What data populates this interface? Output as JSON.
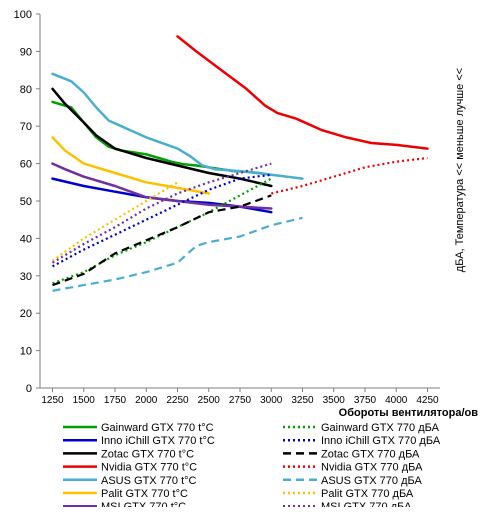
{
  "chart_data": {
    "type": "line",
    "xlabel": "Обороты вентилятора/ов",
    "ylabel_right": "дБА, Температура << меньше лучше <<",
    "xlim": [
      1150,
      4350
    ],
    "ylim": [
      0,
      100
    ],
    "x_ticks": [
      1250,
      1500,
      1750,
      2000,
      2250,
      2500,
      2750,
      3000,
      3250,
      3500,
      3750,
      4000,
      4250
    ],
    "y_ticks": [
      0,
      10,
      20,
      30,
      40,
      50,
      60,
      70,
      80,
      90,
      100
    ],
    "grid": false,
    "legend_position": "bottom",
    "series": [
      {
        "name": "Gainward GTX  770 t°C",
        "color": "#00a000",
        "style": "solid",
        "points": [
          [
            1250,
            76.5
          ],
          [
            1400,
            75
          ],
          [
            1500,
            71
          ],
          [
            1600,
            67
          ],
          [
            1700,
            64.5
          ],
          [
            1800,
            63.5
          ],
          [
            1900,
            63
          ],
          [
            2000,
            62.5
          ],
          [
            2100,
            61.5
          ],
          [
            2200,
            60.5
          ],
          [
            2300,
            59.8
          ],
          [
            2400,
            59.5
          ],
          [
            2500,
            59
          ],
          [
            2600,
            58.5
          ],
          [
            2700,
            58
          ],
          [
            2800,
            57.8
          ],
          [
            2900,
            57.5
          ],
          [
            3000,
            57
          ]
        ]
      },
      {
        "name": "Inno iChill GTX  770 t°C",
        "color": "#0000cc",
        "style": "solid",
        "points": [
          [
            1250,
            56
          ],
          [
            1500,
            54
          ],
          [
            1750,
            52.5
          ],
          [
            2000,
            51
          ],
          [
            2250,
            50
          ],
          [
            2500,
            49.5
          ],
          [
            2750,
            48.5
          ],
          [
            3000,
            47
          ]
        ]
      },
      {
        "name": "Zotac GTX  770 t°C",
        "color": "#000000",
        "style": "solid",
        "points": [
          [
            1250,
            80
          ],
          [
            1350,
            76
          ],
          [
            1500,
            71
          ],
          [
            1600,
            67.5
          ],
          [
            1750,
            64
          ],
          [
            2000,
            61.5
          ],
          [
            2250,
            59.5
          ],
          [
            2500,
            57.5
          ],
          [
            2750,
            56
          ],
          [
            3000,
            54
          ]
        ]
      },
      {
        "name": "Nvidia GTX  770 t°C",
        "color": "#ee0000",
        "style": "solid",
        "points": [
          [
            2250,
            94
          ],
          [
            2400,
            90
          ],
          [
            2600,
            85
          ],
          [
            2800,
            80
          ],
          [
            2950,
            75.5
          ],
          [
            3050,
            73.5
          ],
          [
            3200,
            72
          ],
          [
            3400,
            69
          ],
          [
            3600,
            67
          ],
          [
            3800,
            65.5
          ],
          [
            4000,
            65
          ],
          [
            4250,
            64
          ]
        ]
      },
      {
        "name": "ASUS GTX  770 t°C",
        "color": "#4aaed0",
        "style": "solid",
        "points": [
          [
            1250,
            84
          ],
          [
            1400,
            82
          ],
          [
            1500,
            79
          ],
          [
            1600,
            75
          ],
          [
            1700,
            71.5
          ],
          [
            1800,
            70
          ],
          [
            2000,
            67
          ],
          [
            2250,
            64
          ],
          [
            2350,
            62
          ],
          [
            2450,
            59.5
          ],
          [
            2550,
            58.5
          ],
          [
            2750,
            58
          ],
          [
            3000,
            57
          ],
          [
            3250,
            56
          ]
        ]
      },
      {
        "name": "Palit GTX  770 t°C",
        "color": "#ffc000",
        "style": "solid",
        "points": [
          [
            1250,
            67
          ],
          [
            1350,
            63.5
          ],
          [
            1500,
            60
          ],
          [
            1750,
            57.5
          ],
          [
            2000,
            55
          ],
          [
            2250,
            53.5
          ],
          [
            2500,
            52
          ]
        ]
      },
      {
        "name": "MSI GTX  770 t°C",
        "color": "#7030a0",
        "style": "solid",
        "points": [
          [
            1250,
            60
          ],
          [
            1350,
            58.5
          ],
          [
            1500,
            56.5
          ],
          [
            1750,
            54
          ],
          [
            2000,
            51
          ],
          [
            2250,
            50
          ],
          [
            2500,
            49
          ],
          [
            2750,
            48.5
          ],
          [
            3000,
            48
          ]
        ]
      },
      {
        "name": "Gainward GTX  770 дБА",
        "color": "#00a000",
        "style": "dotted",
        "points": [
          [
            1250,
            28
          ],
          [
            1500,
            31
          ],
          [
            1750,
            35.5
          ],
          [
            2000,
            39
          ],
          [
            2250,
            43
          ],
          [
            2500,
            47
          ],
          [
            2750,
            51.5
          ],
          [
            3000,
            56
          ]
        ]
      },
      {
        "name": "Inno iChill GTX  770 дБА",
        "color": "#0000cc",
        "style": "dotted",
        "points": [
          [
            1250,
            32.5
          ],
          [
            1500,
            37
          ],
          [
            1750,
            41
          ],
          [
            2000,
            45
          ],
          [
            2250,
            49
          ],
          [
            2500,
            53
          ],
          [
            2750,
            56
          ],
          [
            3000,
            57
          ]
        ]
      },
      {
        "name": "Zotac GTX  770 дБА",
        "color": "#000000",
        "style": "dashed",
        "points": [
          [
            1250,
            27.5
          ],
          [
            1500,
            30.5
          ],
          [
            1750,
            36
          ],
          [
            2000,
            39.5
          ],
          [
            2250,
            43
          ],
          [
            2500,
            47
          ],
          [
            2750,
            48.5
          ],
          [
            3000,
            51.5
          ]
        ]
      },
      {
        "name": "Nvidia GTX  770 дБА",
        "color": "#ee0000",
        "style": "dotted",
        "points": [
          [
            3000,
            52
          ],
          [
            3250,
            54
          ],
          [
            3500,
            56.5
          ],
          [
            3750,
            59
          ],
          [
            4000,
            60.5
          ],
          [
            4250,
            61.5
          ]
        ]
      },
      {
        "name": "ASUS GTX  770 дБА",
        "color": "#4aaed0",
        "style": "dashed",
        "points": [
          [
            1250,
            26
          ],
          [
            1500,
            27.5
          ],
          [
            1750,
            29
          ],
          [
            2000,
            31
          ],
          [
            2250,
            33.5
          ],
          [
            2400,
            38
          ],
          [
            2500,
            39
          ],
          [
            2750,
            40.5
          ],
          [
            3000,
            43.5
          ],
          [
            3250,
            45.5
          ]
        ]
      },
      {
        "name": "Palit GTX  770 дБА",
        "color": "#ffc000",
        "style": "dotted",
        "points": [
          [
            1250,
            34
          ],
          [
            1500,
            40
          ],
          [
            1750,
            45
          ],
          [
            2000,
            50
          ],
          [
            2250,
            55
          ]
        ]
      },
      {
        "name": "MSI GTX  770 дБА",
        "color": "#7030a0",
        "style": "dotted",
        "points": [
          [
            1250,
            33.5
          ],
          [
            1500,
            38.5
          ],
          [
            1750,
            43
          ],
          [
            2000,
            48
          ],
          [
            2250,
            52
          ],
          [
            2500,
            55
          ],
          [
            2750,
            57.5
          ],
          [
            3000,
            60
          ]
        ]
      }
    ]
  }
}
